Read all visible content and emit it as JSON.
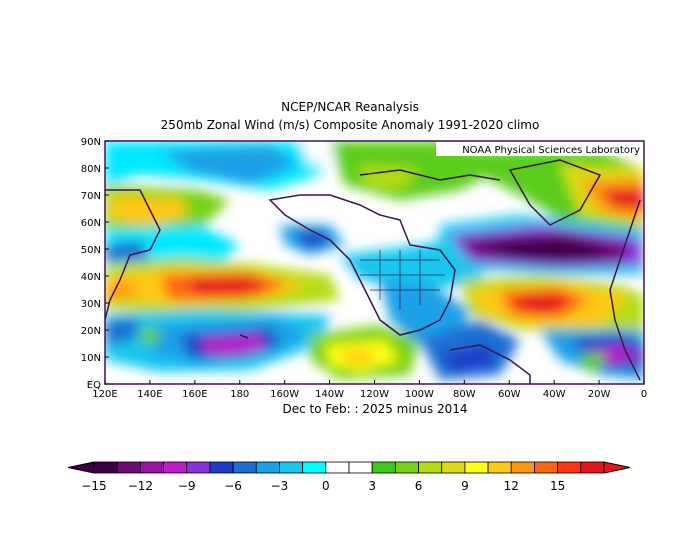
{
  "header": {
    "title": "NCEP/NCAR Reanalysis",
    "subtitle": "250mb Zonal Wind (m/s) Composite Anomaly 1991-2020 climo"
  },
  "credit": "NOAA Physical Sciences Laboratory",
  "period_label": "Dec to Feb: : 2025 minus 2014",
  "map": {
    "lat_labels": [
      "90N",
      "80N",
      "70N",
      "60N",
      "50N",
      "40N",
      "30N",
      "20N",
      "10N",
      "EQ"
    ],
    "lon_labels": [
      "120E",
      "140E",
      "160E",
      "180",
      "160W",
      "140W",
      "120W",
      "100W",
      "80W",
      "60W",
      "40W",
      "20W",
      "0"
    ],
    "lon_range": [
      "120E",
      "0"
    ],
    "lat_range": [
      "EQ",
      "90N"
    ]
  },
  "colorbar": {
    "levels": [
      -15,
      -12,
      -9,
      -6,
      -3,
      0,
      3,
      6,
      9,
      12,
      15
    ],
    "level_labels": [
      "-15",
      "-12",
      "-9",
      "-6",
      "-3",
      "0",
      "3",
      "6",
      "9",
      "12",
      "15"
    ],
    "colors": [
      "#3c0046",
      "#6e0a78",
      "#9614a0",
      "#be1ec8",
      "#8c32dc",
      "#1e3cc8",
      "#1e6ed2",
      "#1ea0e6",
      "#14c8f0",
      "#00ffff",
      "#ffffff",
      "#ffffff",
      "#3cc81e",
      "#78d214",
      "#b4dc14",
      "#dcdc14",
      "#ffff14",
      "#ffc814",
      "#ff9614",
      "#ff6414",
      "#ff3214",
      "#e6141e"
    ]
  }
}
